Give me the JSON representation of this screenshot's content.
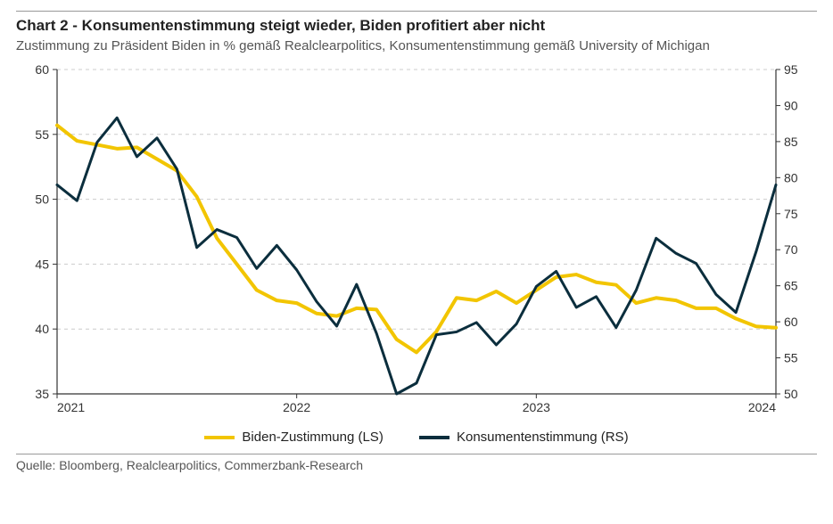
{
  "chart": {
    "title": "Chart 2 - Konsumentenstimmung steigt wieder, Biden profitiert aber nicht",
    "subtitle": "Zustimmung zu Präsident Biden in % gemäß Realclearpolitics, Konsumentenstimmung gemäß University of Michigan",
    "source": "Quelle: Bloomberg, Realclearpolitics, Commerzbank-Research",
    "type": "line",
    "background_color": "#ffffff",
    "grid_color": "#cccccc",
    "axis_color": "#333333",
    "title_fontsize": 17,
    "subtitle_fontsize": 15,
    "label_fontsize": 14,
    "x": {
      "min": 2021,
      "max": 2024,
      "ticks": [
        2021,
        2022,
        2023,
        2024
      ],
      "labels": [
        "2021",
        "2022",
        "2023",
        "2024"
      ]
    },
    "y_left": {
      "min": 35,
      "max": 60,
      "step": 5,
      "ticks": [
        35,
        40,
        45,
        50,
        55,
        60
      ],
      "labels": [
        "35",
        "40",
        "45",
        "50",
        "55",
        "60"
      ]
    },
    "y_right": {
      "min": 50,
      "max": 95,
      "step": 5,
      "ticks": [
        50,
        55,
        60,
        65,
        70,
        75,
        80,
        85,
        90,
        95
      ],
      "labels": [
        "50",
        "55",
        "60",
        "65",
        "70",
        "75",
        "80",
        "85",
        "90",
        "95"
      ]
    },
    "series": [
      {
        "name": "Biden-Zustimmung (LS)",
        "axis": "left",
        "color": "#f2c500",
        "width": 4,
        "data": [
          [
            2021.0,
            55.7
          ],
          [
            2021.083,
            54.5
          ],
          [
            2021.167,
            54.2
          ],
          [
            2021.25,
            53.9
          ],
          [
            2021.333,
            54.0
          ],
          [
            2021.417,
            53.1
          ],
          [
            2021.5,
            52.2
          ],
          [
            2021.583,
            50.2
          ],
          [
            2021.667,
            47.0
          ],
          [
            2021.75,
            45.0
          ],
          [
            2021.833,
            43.0
          ],
          [
            2021.917,
            42.2
          ],
          [
            2022.0,
            42.0
          ],
          [
            2022.083,
            41.2
          ],
          [
            2022.167,
            41.0
          ],
          [
            2022.25,
            41.6
          ],
          [
            2022.333,
            41.5
          ],
          [
            2022.417,
            39.2
          ],
          [
            2022.5,
            38.2
          ],
          [
            2022.583,
            39.8
          ],
          [
            2022.667,
            42.4
          ],
          [
            2022.75,
            42.2
          ],
          [
            2022.833,
            42.9
          ],
          [
            2022.917,
            42.0
          ],
          [
            2023.0,
            43.0
          ],
          [
            2023.083,
            44.0
          ],
          [
            2023.167,
            44.2
          ],
          [
            2023.25,
            43.6
          ],
          [
            2023.333,
            43.4
          ],
          [
            2023.417,
            42.0
          ],
          [
            2023.5,
            42.4
          ],
          [
            2023.583,
            42.2
          ],
          [
            2023.667,
            41.6
          ],
          [
            2023.75,
            41.6
          ],
          [
            2023.833,
            40.8
          ],
          [
            2023.917,
            40.2
          ],
          [
            2024.0,
            40.1
          ]
        ]
      },
      {
        "name": "Konsumentenstimmung (RS)",
        "axis": "right",
        "color": "#0b2e3d",
        "width": 3,
        "data": [
          [
            2021.0,
            79.0
          ],
          [
            2021.083,
            76.8
          ],
          [
            2021.167,
            84.9
          ],
          [
            2021.25,
            88.3
          ],
          [
            2021.333,
            82.9
          ],
          [
            2021.417,
            85.5
          ],
          [
            2021.5,
            81.2
          ],
          [
            2021.583,
            70.3
          ],
          [
            2021.667,
            72.8
          ],
          [
            2021.75,
            71.7
          ],
          [
            2021.833,
            67.4
          ],
          [
            2021.917,
            70.6
          ],
          [
            2022.0,
            67.2
          ],
          [
            2022.083,
            62.8
          ],
          [
            2022.167,
            59.4
          ],
          [
            2022.25,
            65.2
          ],
          [
            2022.333,
            58.4
          ],
          [
            2022.417,
            50.0
          ],
          [
            2022.5,
            51.5
          ],
          [
            2022.583,
            58.2
          ],
          [
            2022.667,
            58.6
          ],
          [
            2022.75,
            59.9
          ],
          [
            2022.833,
            56.8
          ],
          [
            2022.917,
            59.7
          ],
          [
            2023.0,
            64.9
          ],
          [
            2023.083,
            67.0
          ],
          [
            2023.167,
            62.0
          ],
          [
            2023.25,
            63.5
          ],
          [
            2023.333,
            59.2
          ],
          [
            2023.417,
            64.4
          ],
          [
            2023.5,
            71.6
          ],
          [
            2023.583,
            69.5
          ],
          [
            2023.667,
            68.1
          ],
          [
            2023.75,
            63.8
          ],
          [
            2023.833,
            61.3
          ],
          [
            2023.917,
            69.7
          ],
          [
            2024.0,
            79.0
          ]
        ]
      }
    ],
    "legend": {
      "items": [
        {
          "label": "Biden-Zustimmung (LS)",
          "color": "#f2c500"
        },
        {
          "label": "Konsumentenstimmung (RS)",
          "color": "#0b2e3d"
        }
      ]
    }
  }
}
